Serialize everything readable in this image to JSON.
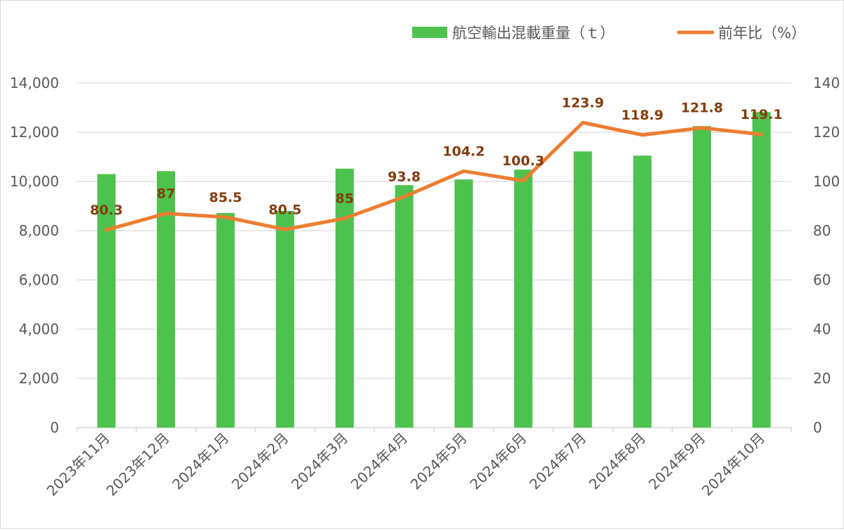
{
  "chart_data": {
    "type": "bar",
    "categories": [
      "2023年11月",
      "2023年12月",
      "2024年1月",
      "2024年2月",
      "2024年3月",
      "2024年4月",
      "2024年5月",
      "2024年6月",
      "2024年7月",
      "2024年8月",
      "2024年9月",
      "2024年10月"
    ],
    "series": [
      {
        "name": "航空輸出混載重量（ｔ）",
        "type": "bar",
        "axis": "left",
        "color": "#4ec24e",
        "values": [
          10300,
          10420,
          8720,
          8800,
          10520,
          9850,
          10080,
          10480,
          11220,
          11050,
          12250,
          12820
        ]
      },
      {
        "name": "前年比（%）",
        "type": "line",
        "axis": "right",
        "color": "#ed7d31",
        "values": [
          80.3,
          87,
          85.5,
          80.5,
          85,
          93.8,
          104.2,
          100.3,
          123.9,
          118.9,
          121.8,
          119.1
        ],
        "labels": [
          "80.3",
          "87",
          "85.5",
          "80.5",
          "85",
          "93.8",
          "104.2",
          "100.3",
          "123.9",
          "118.9",
          "121.8",
          "119.1"
        ]
      }
    ],
    "y_left": {
      "min": 0,
      "max": 14000,
      "ticks": [
        0,
        2000,
        4000,
        6000,
        8000,
        10000,
        12000,
        14000
      ],
      "tick_labels": [
        "0",
        "2,000",
        "4,000",
        "6,000",
        "8,000",
        "10,000",
        "12,000",
        "14,000"
      ]
    },
    "y_right": {
      "min": 0,
      "max": 140,
      "ticks": [
        0,
        20,
        40,
        60,
        80,
        100,
        120,
        140
      ],
      "tick_labels": [
        "0",
        "20",
        "40",
        "60",
        "80",
        "100",
        "120",
        "140"
      ]
    },
    "grid": true,
    "legend_position": "top-right",
    "title": "",
    "xlabel": "",
    "ylabel": ""
  }
}
